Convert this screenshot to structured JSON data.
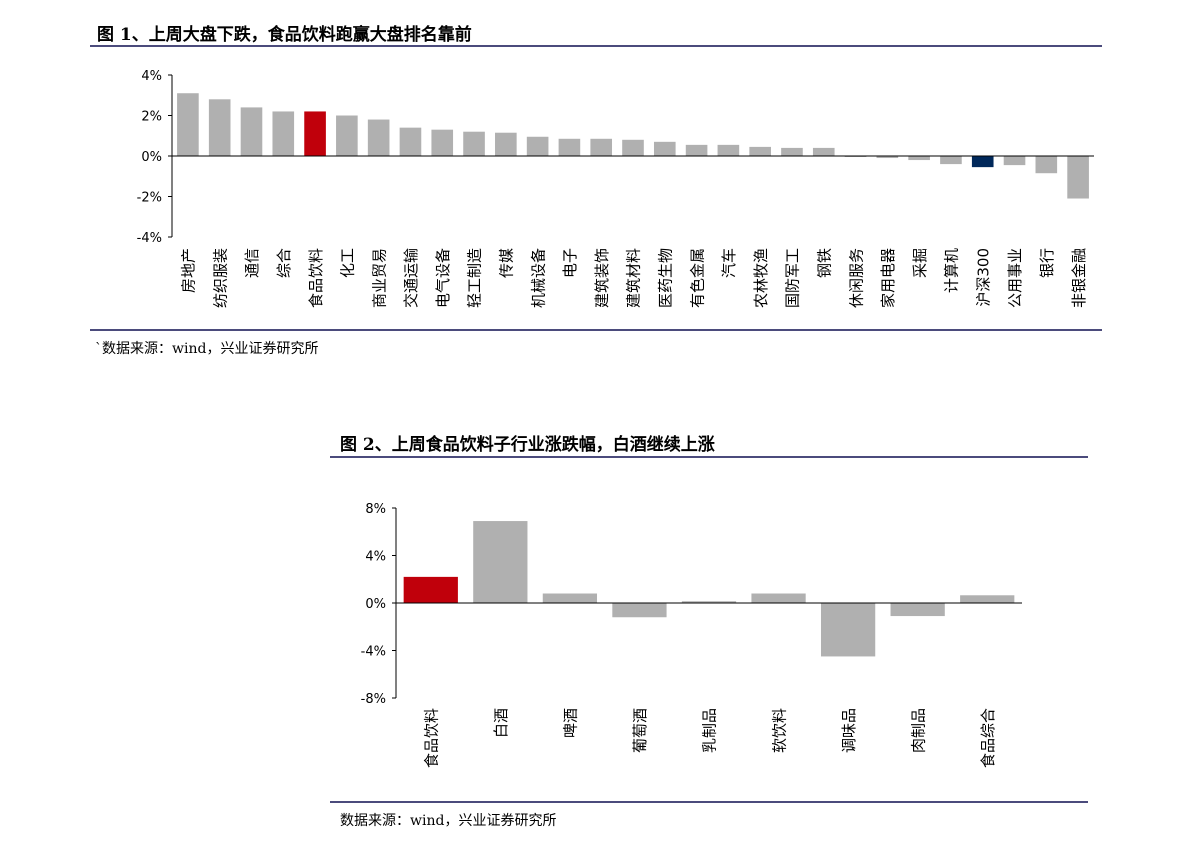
{
  "figure1": {
    "title": "图 1、上周大盘下跌，食品饮料跑赢大盘排名靠前",
    "source": "`数据来源：wind，兴业证券研究所"
  },
  "figure2": {
    "title": "图 2、上周食品饮料子行业涨跌幅，白酒继续上涨",
    "source": "数据来源：wind，兴业证券研究所"
  },
  "colors": {
    "highlight_red": "#c0000b",
    "highlight_navy": "#00285a",
    "bar_gray": "#b0b0b0",
    "rule": "#4b4b7c"
  },
  "chart_data": [
    {
      "type": "bar",
      "title": "",
      "xlabel": "",
      "ylabel": "",
      "ylim": [
        -4,
        4
      ],
      "ytick_labels": [
        "4%",
        "2%",
        "0%",
        "-2%",
        "-4%"
      ],
      "grid": false,
      "categories": [
        "房地产",
        "纺织服装",
        "通信",
        "综合",
        "食品饮料",
        "化工",
        "商业贸易",
        "交通运输",
        "电气设备",
        "轻工制造",
        "传媒",
        "机械设备",
        "电子",
        "建筑装饰",
        "建筑材料",
        "医药生物",
        "有色金属",
        "汽车",
        "农林牧渔",
        "国防军工",
        "钢铁",
        "休闲服务",
        "家用电器",
        "采掘",
        "计算机",
        "沪深300",
        "公用事业",
        "银行",
        "非银金融"
      ],
      "values": [
        3.1,
        2.8,
        2.4,
        2.2,
        2.2,
        2.0,
        1.8,
        1.4,
        1.3,
        1.2,
        1.15,
        0.95,
        0.85,
        0.85,
        0.8,
        0.7,
        0.55,
        0.55,
        0.45,
        0.4,
        0.4,
        0.0,
        -0.1,
        -0.2,
        -0.4,
        -0.55,
        -0.45,
        -0.85,
        -2.1
      ],
      "highlight": {
        "食品饮料": "red",
        "沪深300": "navy"
      }
    },
    {
      "type": "bar",
      "title": "",
      "xlabel": "",
      "ylabel": "",
      "ylim": [
        -8,
        8
      ],
      "ytick_labels": [
        "8%",
        "4%",
        "0%",
        "-4%",
        "-8%"
      ],
      "grid": false,
      "categories": [
        "食品饮料",
        "白酒",
        "啤酒",
        "葡萄酒",
        "乳制品",
        "软饮料",
        "调味品",
        "肉制品",
        "食品综合"
      ],
      "values": [
        2.2,
        6.9,
        0.8,
        -1.2,
        0.15,
        0.8,
        -4.5,
        -1.1,
        0.65
      ],
      "highlight": {
        "食品饮料": "red"
      }
    }
  ]
}
